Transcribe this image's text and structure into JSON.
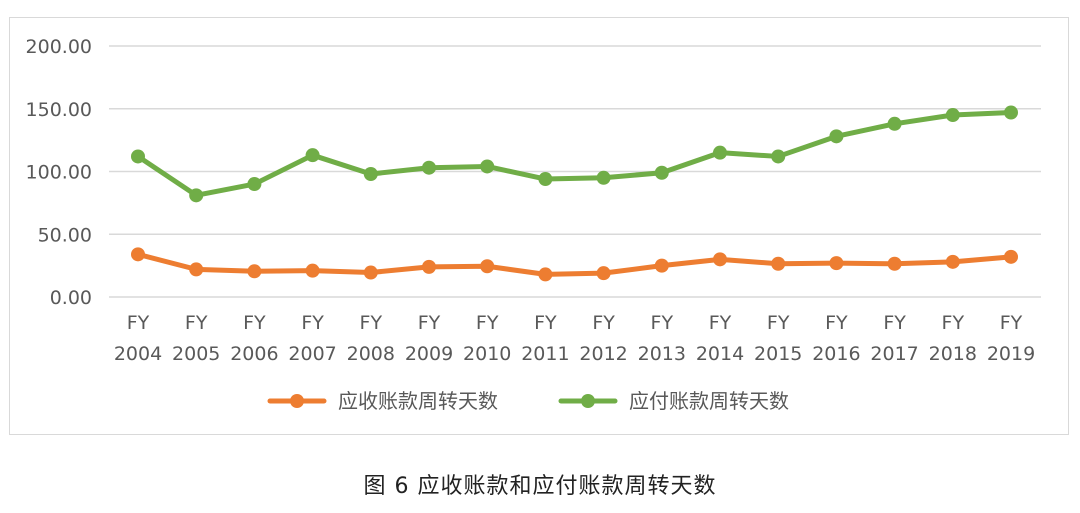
{
  "chart_data": {
    "type": "line",
    "categories": [
      "FY\n2004",
      "FY\n2005",
      "FY\n2006",
      "FY\n2007",
      "FY\n2008",
      "FY\n2009",
      "FY\n2010",
      "FY\n2011",
      "FY\n2012",
      "FY\n2013",
      "FY\n2014",
      "FY\n2015",
      "FY\n2016",
      "FY\n2017",
      "FY\n2018",
      "FY\n2019"
    ],
    "yticks": [
      "0.00",
      "50.00",
      "100.00",
      "150.00",
      "200.00"
    ],
    "ylim": [
      0,
      200
    ],
    "grid": true,
    "legend_position": "bottom",
    "series": [
      {
        "name": "应收账款周转天数",
        "color": "#ED7D31",
        "values": [
          34,
          22,
          20.5,
          21,
          19.5,
          24,
          24.5,
          18,
          19,
          25,
          30,
          26.5,
          27,
          26.5,
          28,
          32
        ]
      },
      {
        "name": "应付账款周转天数",
        "color": "#70AD47",
        "values": [
          112,
          81,
          90,
          113,
          98,
          103,
          104,
          94,
          95,
          99,
          115,
          112,
          128,
          138,
          145,
          147
        ]
      }
    ]
  },
  "caption": "图 6 应收账款和应付账款周转天数"
}
